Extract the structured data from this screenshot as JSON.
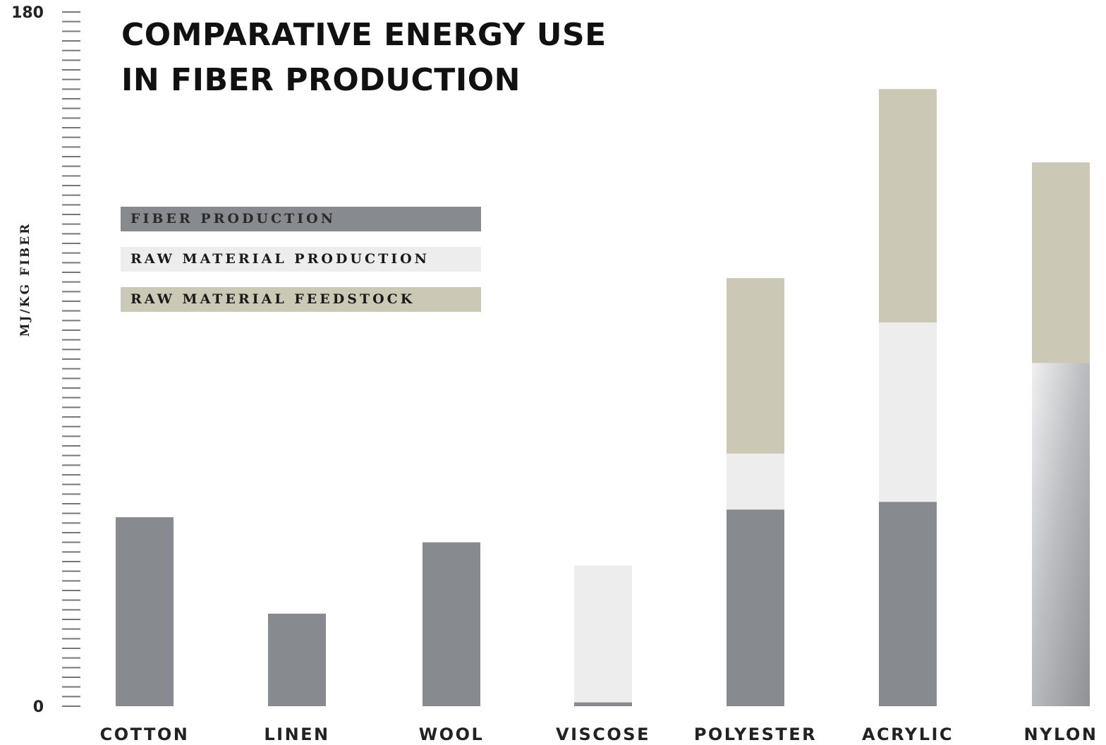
{
  "title_lines": [
    "COMPARATIVE ENERGY USE",
    "IN FIBER PRODUCTION"
  ],
  "colors": {
    "fiber_production": "#878a8e",
    "raw_material_production": "#ededed",
    "raw_material_feedstock": "#cbc8b5",
    "text": "#111111",
    "tick": "#777777"
  },
  "chart_data": {
    "type": "bar",
    "stacked": true,
    "title": "COMPARATIVE ENERGY USE IN FIBER PRODUCTION",
    "xlabel": "",
    "ylabel": "MJ/KG FIBER",
    "ylim": [
      0,
      180
    ],
    "y_tick_labels": [
      "0",
      "180"
    ],
    "minor_tick_step": 2.5,
    "grid": false,
    "legend_position": "top-left",
    "categories": [
      "COTTON",
      "LINEN",
      "WOOL",
      "VISCOSE",
      "POLYESTER",
      "ACRYLIC",
      "NYLON"
    ],
    "series": [
      {
        "name": "FIBER PRODUCTION",
        "color": "#878a8e",
        "values": [
          49,
          24,
          42.5,
          1,
          51,
          53,
          89
        ]
      },
      {
        "name": "RAW MATERIAL PRODUCTION",
        "color": "#ededed",
        "values": [
          0,
          0,
          0,
          35.5,
          14.5,
          46.5,
          0
        ]
      },
      {
        "name": "RAW MATERIAL FEEDSTOCK",
        "color": "#cbc8b5",
        "values": [
          0,
          0,
          0,
          0,
          45.5,
          60.5,
          52
        ]
      }
    ]
  }
}
